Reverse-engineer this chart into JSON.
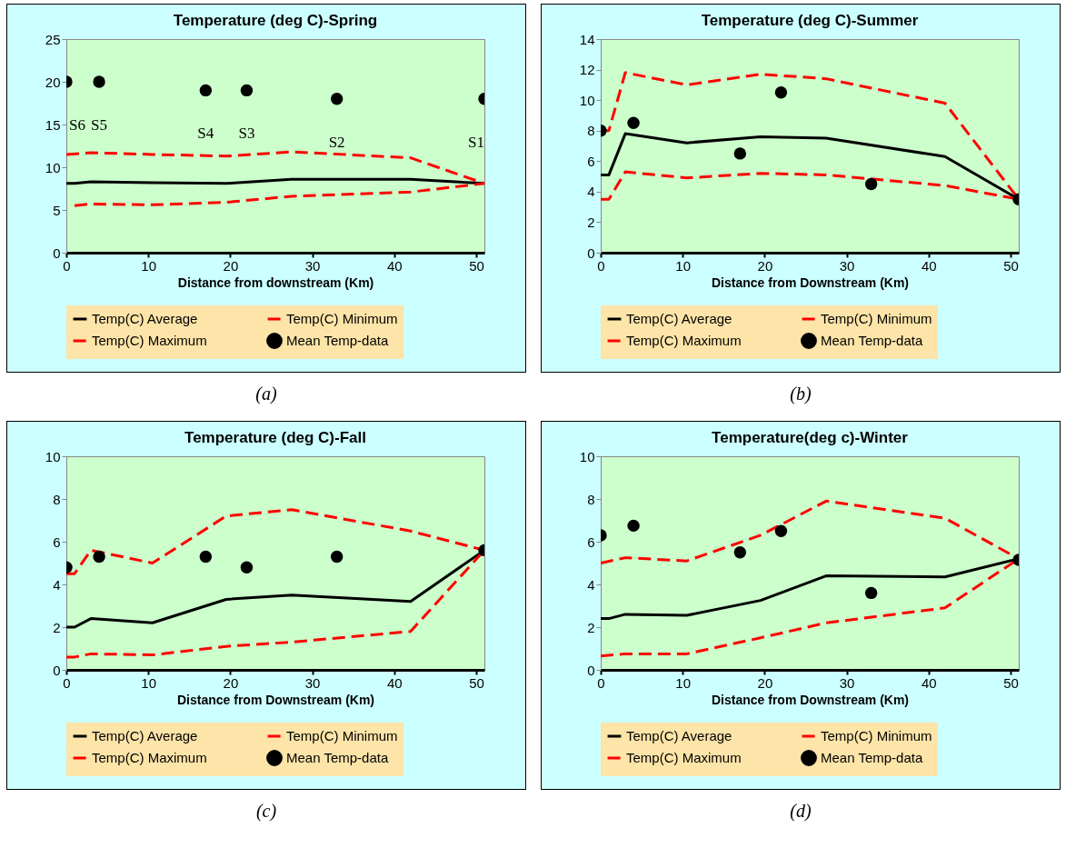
{
  "chart_data": [
    {
      "type": "line",
      "title": "Temperature (deg C)-Spring",
      "xlabel": "Distance from downstream (Km)",
      "xlim": [
        0,
        51
      ],
      "xticks": [
        0,
        10,
        20,
        30,
        40,
        50
      ],
      "ylim": [
        0,
        25
      ],
      "yticks": [
        0,
        5,
        10,
        15,
        20,
        25
      ],
      "grid": false,
      "legend": "bottom",
      "series": [
        {
          "name": "Temp(C) Average",
          "color": "#000000",
          "line_style": "solid",
          "x": [
            0,
            1,
            3,
            10.5,
            19.5,
            27.5,
            42,
            51
          ],
          "values": [
            8.1,
            8.1,
            8.3,
            8.2,
            8.1,
            8.6,
            8.6,
            8.1
          ]
        },
        {
          "name": "Temp(C) Minimum",
          "color": "#ff0000",
          "line_style": "dashed",
          "x": [
            1,
            3,
            10.5,
            19.5,
            27.5,
            42,
            51
          ],
          "values": [
            5.5,
            5.7,
            5.6,
            5.9,
            6.6,
            7.1,
            8.1
          ]
        },
        {
          "name": "Temp(C) Maximum",
          "color": "#ff0000",
          "line_style": "dashed",
          "x": [
            0,
            3,
            10.5,
            19.5,
            27.5,
            42,
            51
          ],
          "values": [
            11.5,
            11.7,
            11.5,
            11.3,
            11.8,
            11.1,
            8.1
          ]
        },
        {
          "name": "Mean Temp-data",
          "type": "scatter",
          "color": "#000000",
          "marker": "circle",
          "x": [
            0,
            4,
            17,
            22,
            33,
            51
          ],
          "values": [
            20,
            20,
            19,
            19,
            18,
            18
          ]
        }
      ],
      "annotations": [
        {
          "text": "S6",
          "x": 0,
          "y": 20
        },
        {
          "text": "S5",
          "x": 4,
          "y": 20
        },
        {
          "text": "S4",
          "x": 17,
          "y": 19
        },
        {
          "text": "S3",
          "x": 22,
          "y": 19
        },
        {
          "text": "S2",
          "x": 33,
          "y": 18
        },
        {
          "text": "S1",
          "x": 51,
          "y": 18
        },
        "(a)"
      ]
    },
    {
      "type": "line",
      "title": "Temperature (deg C)-Summer",
      "xlabel": "Distance from Downstream (Km)",
      "xlim": [
        0,
        51
      ],
      "xticks": [
        0,
        10,
        20,
        30,
        40,
        50
      ],
      "ylim": [
        0,
        14
      ],
      "yticks": [
        0,
        2,
        4,
        6,
        8,
        10,
        12,
        14
      ],
      "grid": false,
      "legend": "bottom",
      "series": [
        {
          "name": "Temp(C) Average",
          "color": "#000000",
          "line_style": "solid",
          "x": [
            0,
            1,
            3,
            10.5,
            19.5,
            27.5,
            42,
            51
          ],
          "values": [
            5.1,
            5.1,
            7.8,
            7.2,
            7.6,
            7.5,
            6.3,
            3.5
          ]
        },
        {
          "name": "Temp(C) Minimum",
          "color": "#ff0000",
          "line_style": "dashed",
          "x": [
            0,
            1,
            3,
            10.5,
            19.5,
            27.5,
            42,
            51
          ],
          "values": [
            3.5,
            3.5,
            5.3,
            4.9,
            5.2,
            5.1,
            4.4,
            3.5
          ]
        },
        {
          "name": "Temp(C) Maximum",
          "color": "#ff0000",
          "line_style": "dashed",
          "x": [
            0,
            1,
            3,
            10.5,
            19.5,
            27.5,
            42,
            51
          ],
          "values": [
            8,
            8,
            11.8,
            11,
            11.7,
            11.4,
            9.8,
            3.5
          ]
        },
        {
          "name": "Mean Temp-data",
          "type": "scatter",
          "color": "#000000",
          "marker": "circle",
          "x": [
            0,
            4,
            17,
            22,
            33,
            51
          ],
          "values": [
            8,
            8.5,
            6.5,
            10.5,
            4.5,
            3.5
          ]
        }
      ],
      "annotations": [
        "(b)"
      ]
    },
    {
      "type": "line",
      "title": "Temperature (deg C)-Fall",
      "xlabel": "Distance from Downstream (Km)",
      "xlim": [
        0,
        51
      ],
      "xticks": [
        0,
        10,
        20,
        30,
        40,
        50
      ],
      "ylim": [
        0,
        10
      ],
      "yticks": [
        0,
        2,
        4,
        6,
        8,
        10
      ],
      "grid": false,
      "legend": "bottom",
      "series": [
        {
          "name": "Temp(C) Average",
          "color": "#000000",
          "line_style": "solid",
          "x": [
            0,
            1,
            3,
            10.5,
            19.5,
            27.5,
            42,
            51
          ],
          "values": [
            2,
            2,
            2.4,
            2.2,
            3.3,
            3.5,
            3.2,
            5.6
          ]
        },
        {
          "name": "Temp(C) Minimum",
          "color": "#ff0000",
          "line_style": "dashed",
          "x": [
            0,
            1,
            3,
            10.5,
            19.5,
            27.5,
            42,
            51
          ],
          "values": [
            0.6,
            0.6,
            0.75,
            0.7,
            1.1,
            1.3,
            1.8,
            5.6
          ]
        },
        {
          "name": "Temp(C) Maximum",
          "color": "#ff0000",
          "line_style": "dashed",
          "x": [
            0,
            1,
            3,
            10.5,
            19.5,
            27.5,
            42,
            51
          ],
          "values": [
            4.5,
            4.5,
            5.6,
            5,
            7.2,
            7.5,
            6.5,
            5.6
          ]
        },
        {
          "name": "Mean Temp-data",
          "type": "scatter",
          "color": "#000000",
          "marker": "circle",
          "x": [
            0,
            4,
            17,
            22,
            33,
            51
          ],
          "values": [
            4.8,
            5.3,
            5.3,
            4.8,
            5.3,
            5.6
          ]
        }
      ],
      "annotations": [
        "(c)"
      ]
    },
    {
      "type": "line",
      "title": "Temperature(deg c)-Winter",
      "xlabel": "Distance from Downstream (Km)",
      "xlim": [
        0,
        51
      ],
      "xticks": [
        0,
        10,
        20,
        30,
        40,
        50
      ],
      "ylim": [
        0,
        10
      ],
      "yticks": [
        0,
        2,
        4,
        6,
        8,
        10
      ],
      "grid": false,
      "legend": "bottom",
      "series": [
        {
          "name": "Temp(C) Average",
          "color": "#000000",
          "line_style": "solid",
          "x": [
            0,
            1,
            3,
            10.5,
            19.5,
            27.5,
            42,
            51
          ],
          "values": [
            2.4,
            2.4,
            2.6,
            2.55,
            3.25,
            4.4,
            4.35,
            5.2
          ]
        },
        {
          "name": "Temp(C) Minimum",
          "color": "#ff0000",
          "line_style": "dashed",
          "x": [
            0,
            3,
            10.5,
            19.5,
            27.5,
            42,
            51
          ],
          "values": [
            0.65,
            0.75,
            0.75,
            1.5,
            2.2,
            2.9,
            5.2
          ]
        },
        {
          "name": "Temp(C) Maximum",
          "color": "#ff0000",
          "line_style": "dashed",
          "x": [
            0,
            3,
            10.5,
            19.5,
            27.5,
            42,
            51
          ],
          "values": [
            5,
            5.25,
            5.1,
            6.3,
            7.9,
            7.1,
            5.2
          ]
        },
        {
          "name": "Mean Temp-data",
          "type": "scatter",
          "color": "#000000",
          "marker": "circle",
          "x": [
            0,
            4,
            17,
            22,
            33,
            51
          ],
          "values": [
            6.3,
            6.75,
            5.5,
            6.5,
            3.6,
            5.15
          ]
        }
      ],
      "annotations": [
        "(d)"
      ]
    }
  ]
}
